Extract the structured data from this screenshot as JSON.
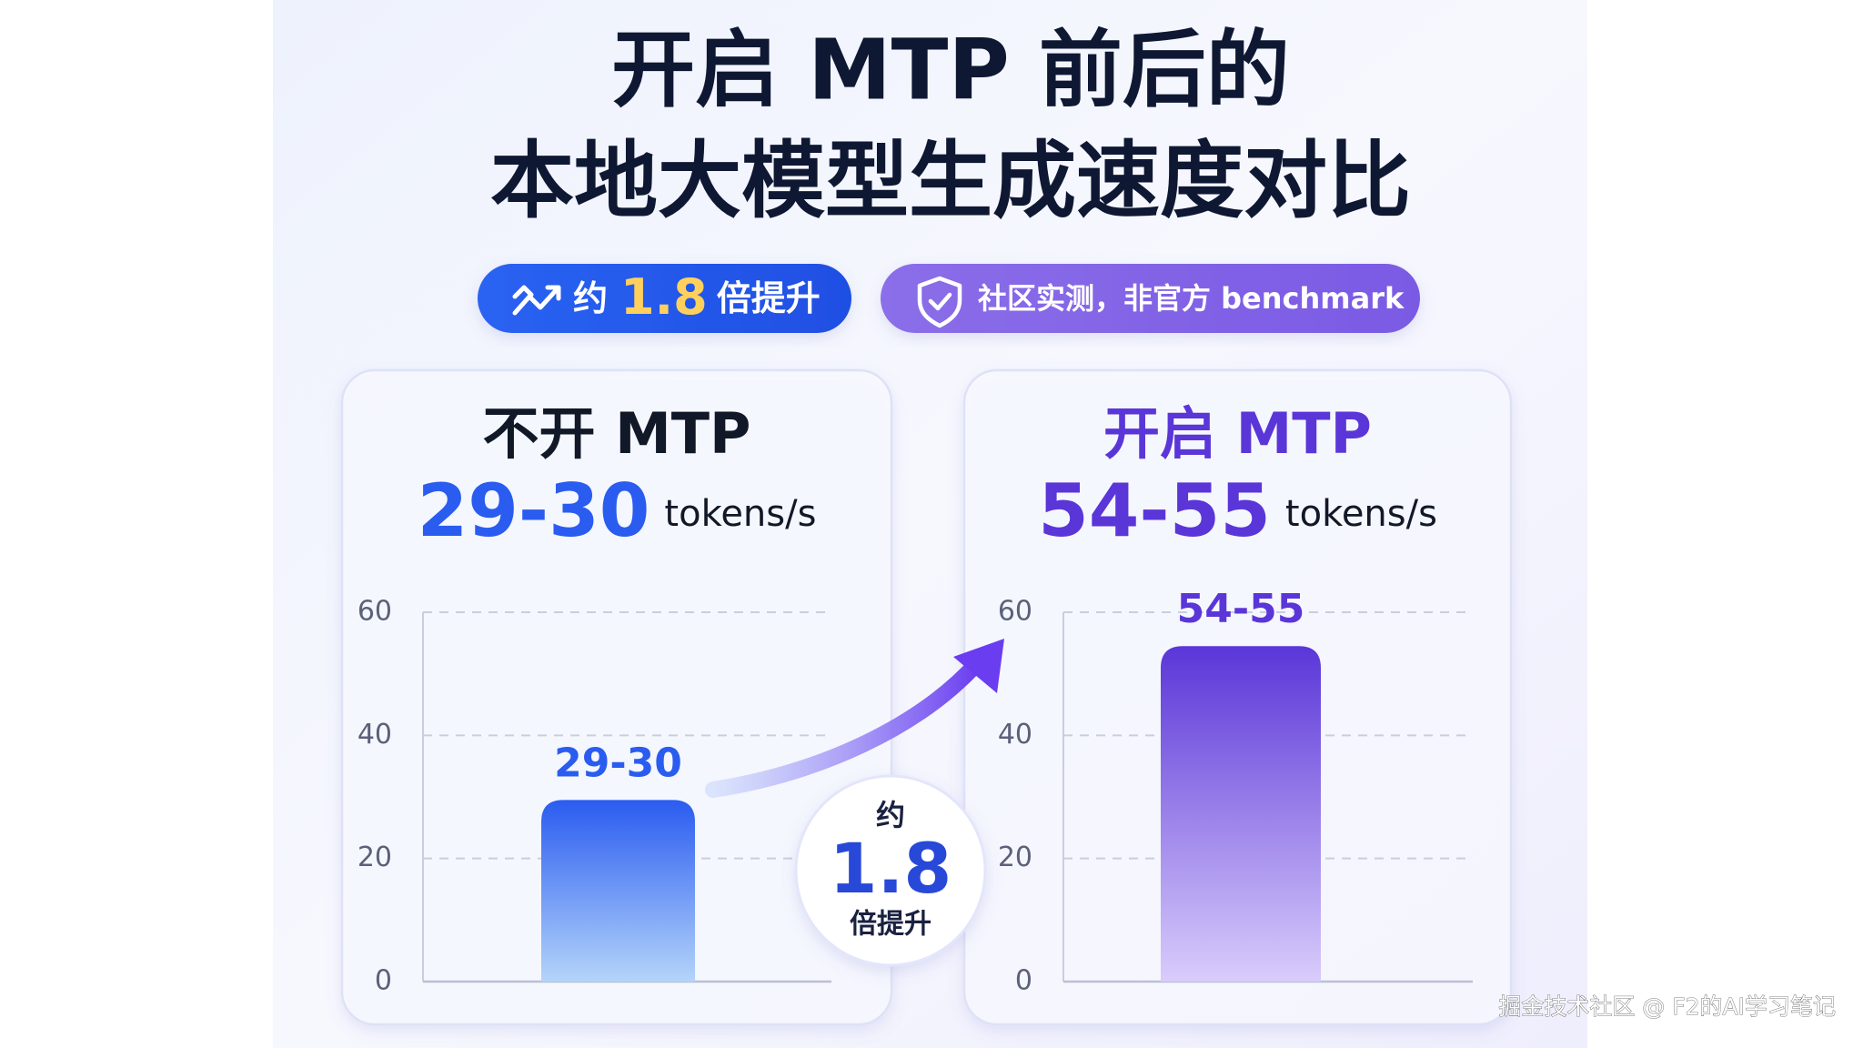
{
  "header": {
    "title_lines": [
      "开启 MTP 前后的",
      "本地大模型生成速度对比"
    ]
  },
  "badges": [
    {
      "prefix": "约",
      "highlight": "1.8",
      "suffix": "倍提升"
    },
    {
      "text": "社区实测，非官方 benchmark"
    }
  ],
  "chart_data": [
    {
      "type": "bar",
      "title": "不开 MTP",
      "subtitle": "29-30",
      "unit": "tokens/s",
      "categories": [
        null
      ],
      "values": [
        29.5
      ],
      "value_labels": [
        "29-30"
      ],
      "color": "#2a5cf0",
      "gradient_end": "#b4d4fa",
      "ylim": [
        0,
        60
      ],
      "yticks": [
        0,
        20,
        40,
        60
      ],
      "grid": true
    },
    {
      "type": "bar",
      "title": "开启 MTP",
      "subtitle": "54-55",
      "unit": "tokens/s",
      "categories": [
        null
      ],
      "values": [
        54.5
      ],
      "value_labels": [
        "54-55"
      ],
      "color": "#5a36d8",
      "gradient_end": "#d9ccfb",
      "ylim": [
        0,
        60
      ],
      "yticks": [
        0,
        20,
        40,
        60
      ],
      "grid": true
    }
  ],
  "speedup_badge": {
    "prefix": "约",
    "value": "1.8",
    "suffix": "倍提升"
  },
  "watermark": "掘金技术社区 @ F2的AI学习笔记"
}
